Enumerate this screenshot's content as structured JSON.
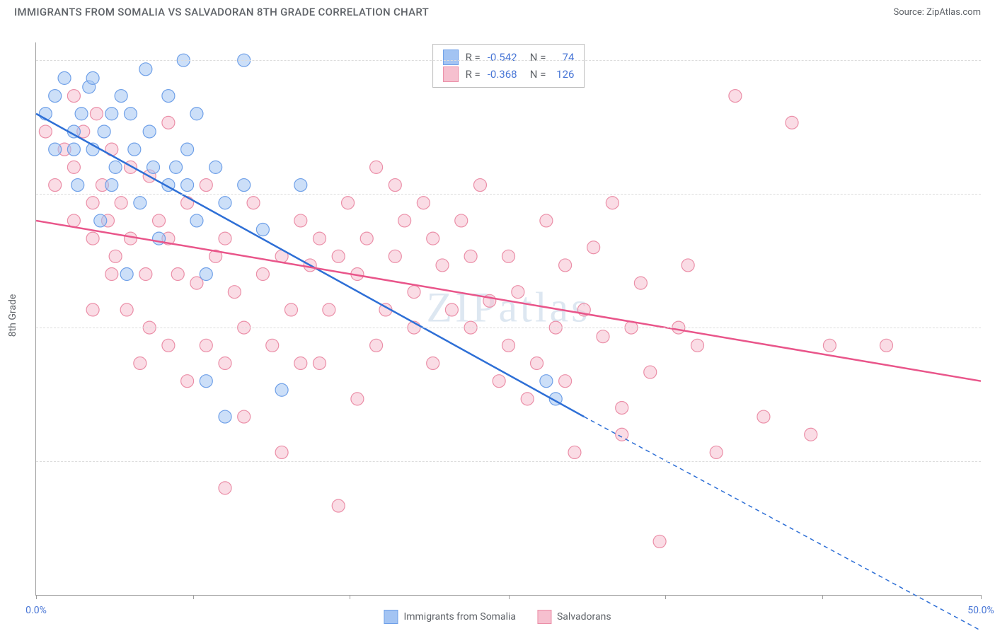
{
  "title": "IMMIGRANTS FROM SOMALIA VS SALVADORAN 8TH GRADE CORRELATION CHART",
  "source": "Source: ZipAtlas.com",
  "ylabel": "8th Grade",
  "watermark": "ZIPatlas",
  "colors": {
    "blue_fill": "#a3c4f3",
    "blue_stroke": "#6fa0e8",
    "blue_line": "#2e6fd6",
    "pink_fill": "#f6c0cf",
    "pink_stroke": "#eb8fa8",
    "pink_line": "#e9558a",
    "text_blue": "#4876d6",
    "grid": "#dcdcdc",
    "axis": "#9e9e9e",
    "label_gray": "#5f6368"
  },
  "chart": {
    "type": "scatter",
    "xlim": [
      0,
      50
    ],
    "ylim": [
      70,
      101
    ],
    "xticks": [
      0,
      50
    ],
    "xtick_marks": [
      0,
      8.3,
      16.6,
      25,
      33.3,
      41.6,
      50
    ],
    "yticks": [
      77.5,
      85.0,
      92.5,
      100.0
    ],
    "marker_radius": 9,
    "marker_opacity": 0.55,
    "line_width": 2.5
  },
  "series": [
    {
      "name": "Immigrants from Somalia",
      "color_key": "blue",
      "R": "-0.542",
      "N": "74",
      "trend": {
        "x1": 0,
        "y1": 97,
        "x2": 29,
        "y2": 80,
        "solid_x2": 29,
        "dash_x2": 50,
        "dash_y2": 68
      },
      "points": [
        [
          0.5,
          97
        ],
        [
          1,
          95
        ],
        [
          1,
          98
        ],
        [
          1.5,
          99
        ],
        [
          2,
          96
        ],
        [
          2,
          95
        ],
        [
          2.2,
          93
        ],
        [
          2.4,
          97
        ],
        [
          2.8,
          98.5
        ],
        [
          3,
          95
        ],
        [
          3,
          99
        ],
        [
          3.4,
          91
        ],
        [
          3.6,
          96
        ],
        [
          4,
          93
        ],
        [
          4,
          97
        ],
        [
          4.2,
          94
        ],
        [
          4.5,
          98
        ],
        [
          4.8,
          88
        ],
        [
          5,
          97
        ],
        [
          5.2,
          95
        ],
        [
          5.5,
          92
        ],
        [
          5.8,
          99.5
        ],
        [
          6,
          96
        ],
        [
          6.2,
          94
        ],
        [
          6.5,
          90
        ],
        [
          7,
          98
        ],
        [
          7,
          93
        ],
        [
          7.4,
          94
        ],
        [
          7.8,
          100
        ],
        [
          8,
          95
        ],
        [
          8,
          93
        ],
        [
          8.5,
          91
        ],
        [
          8.5,
          97
        ],
        [
          9,
          88
        ],
        [
          9,
          82
        ],
        [
          9.5,
          94
        ],
        [
          10,
          92
        ],
        [
          10,
          80
        ],
        [
          11,
          100
        ],
        [
          11,
          93
        ],
        [
          12,
          90.5
        ],
        [
          13,
          81.5
        ],
        [
          14,
          93
        ],
        [
          27,
          82
        ],
        [
          27.5,
          81
        ]
      ]
    },
    {
      "name": "Salvadorans",
      "color_key": "pink",
      "R": "-0.368",
      "N": "126",
      "trend": {
        "x1": 0,
        "y1": 91,
        "x2": 50,
        "y2": 82,
        "solid_x2": 50
      },
      "points": [
        [
          0.5,
          96
        ],
        [
          1,
          93
        ],
        [
          1.5,
          95
        ],
        [
          2,
          94
        ],
        [
          2,
          91
        ],
        [
          2,
          98
        ],
        [
          2.5,
          96
        ],
        [
          3,
          92
        ],
        [
          3,
          90
        ],
        [
          3,
          86
        ],
        [
          3.2,
          97
        ],
        [
          3.5,
          93
        ],
        [
          3.8,
          91
        ],
        [
          4,
          88
        ],
        [
          4,
          95
        ],
        [
          4.2,
          89
        ],
        [
          4.5,
          92
        ],
        [
          4.8,
          86
        ],
        [
          5,
          90
        ],
        [
          5,
          94
        ],
        [
          5.5,
          83
        ],
        [
          5.8,
          88
        ],
        [
          6,
          93.5
        ],
        [
          6,
          85
        ],
        [
          6.5,
          91
        ],
        [
          7,
          96.5
        ],
        [
          7,
          90
        ],
        [
          7,
          84
        ],
        [
          7.5,
          88
        ],
        [
          8,
          92
        ],
        [
          8,
          82
        ],
        [
          8.5,
          87.5
        ],
        [
          9,
          93
        ],
        [
          9,
          84
        ],
        [
          9.5,
          89
        ],
        [
          10,
          83
        ],
        [
          10,
          76
        ],
        [
          10,
          90
        ],
        [
          10.5,
          87
        ],
        [
          11,
          85
        ],
        [
          11,
          80
        ],
        [
          11.5,
          92
        ],
        [
          12,
          88
        ],
        [
          12.5,
          84
        ],
        [
          13,
          78
        ],
        [
          13,
          89
        ],
        [
          13.5,
          86
        ],
        [
          14,
          83
        ],
        [
          14,
          91
        ],
        [
          14.5,
          88.5
        ],
        [
          15,
          90
        ],
        [
          15,
          83
        ],
        [
          15.5,
          86
        ],
        [
          16,
          89
        ],
        [
          16,
          75
        ],
        [
          16.5,
          92
        ],
        [
          17,
          88
        ],
        [
          17,
          81
        ],
        [
          17.5,
          90
        ],
        [
          18,
          84
        ],
        [
          18,
          94
        ],
        [
          18.5,
          86
        ],
        [
          19,
          93
        ],
        [
          19,
          89
        ],
        [
          19.5,
          91
        ],
        [
          20,
          87
        ],
        [
          20,
          85
        ],
        [
          20.5,
          92
        ],
        [
          21,
          90
        ],
        [
          21,
          83
        ],
        [
          21.5,
          88.5
        ],
        [
          22,
          86
        ],
        [
          22.5,
          91
        ],
        [
          23,
          85
        ],
        [
          23,
          89
        ],
        [
          23.5,
          93
        ],
        [
          24,
          86.5
        ],
        [
          24.5,
          82
        ],
        [
          25,
          89
        ],
        [
          25,
          84
        ],
        [
          25.5,
          87
        ],
        [
          26,
          81
        ],
        [
          26.5,
          83
        ],
        [
          27,
          91
        ],
        [
          27.5,
          85
        ],
        [
          28,
          88.5
        ],
        [
          28,
          82
        ],
        [
          28.5,
          78
        ],
        [
          29,
          86
        ],
        [
          29.5,
          89.5
        ],
        [
          30,
          84.5
        ],
        [
          30.5,
          92
        ],
        [
          31,
          80.5
        ],
        [
          31,
          79
        ],
        [
          31.5,
          85
        ],
        [
          32,
          87.5
        ],
        [
          32.5,
          82.5
        ],
        [
          33,
          73
        ],
        [
          34,
          85
        ],
        [
          34.5,
          88.5
        ],
        [
          35,
          84
        ],
        [
          36,
          78
        ],
        [
          37,
          98
        ],
        [
          38.5,
          80
        ],
        [
          40,
          96.5
        ],
        [
          41,
          79
        ],
        [
          42,
          84
        ],
        [
          45,
          84
        ]
      ]
    }
  ],
  "legend": {
    "series1_label": "Immigrants from Somalia",
    "series2_label": "Salvadorans"
  },
  "stats_labels": {
    "R": "R =",
    "N": "N ="
  }
}
